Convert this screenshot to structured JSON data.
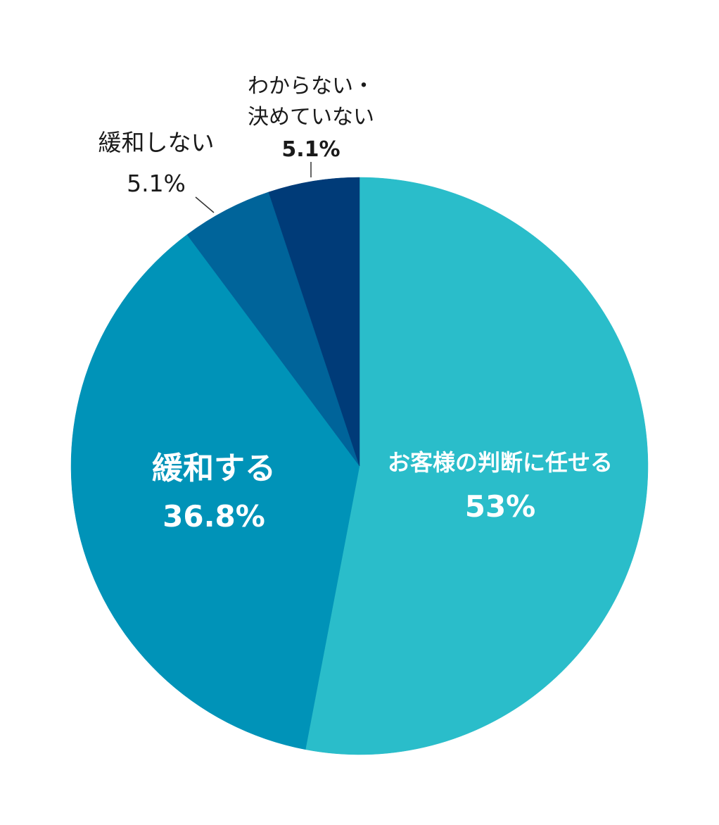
{
  "chart_data": {
    "type": "pie",
    "start_angle_deg": 0,
    "direction": "clockwise",
    "slices": [
      {
        "label": "お客様の判断に任せる",
        "value": 53,
        "display": "53%",
        "color": "#2abdca"
      },
      {
        "label": "緩和する",
        "value": 36.8,
        "display": "36.8%",
        "color": "#0093b8"
      },
      {
        "label": "緩和しない",
        "value": 5.1,
        "display": "5.1%",
        "color": "#00649a"
      },
      {
        "label_lines": [
          "わからない・",
          "決めていない"
        ],
        "value": 5.1,
        "display": "5.1%",
        "color": "#003b78"
      }
    ]
  }
}
